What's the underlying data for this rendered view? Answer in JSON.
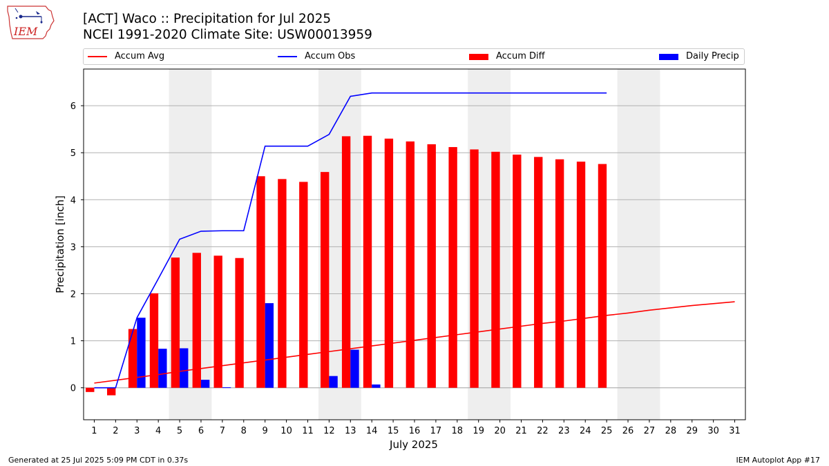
{
  "header": {
    "title_line1": "[ACT] Waco :: Precipitation for Jul 2025",
    "title_line2": "NCEI 1991-2020 Climate Site: USW00013959",
    "logo_text": "IEM"
  },
  "legend": {
    "items": [
      {
        "label": "Accum Avg",
        "color": "#ff0000",
        "kind": "line"
      },
      {
        "label": "Accum Obs",
        "color": "#0000ff",
        "kind": "line"
      },
      {
        "label": "Accum Diff",
        "color": "#ff0000",
        "kind": "bar"
      },
      {
        "label": "Daily Precip",
        "color": "#0000ff",
        "kind": "bar"
      }
    ]
  },
  "footer": {
    "left": "Generated at 25 Jul 2025 5:09 PM CDT in 0.37s",
    "right": "IEM Autoplot App #17"
  },
  "chart_data": {
    "type": "bar",
    "xlabel": "July 2025",
    "ylabel": "Precipitation [inch]",
    "xlim": [
      0.5,
      31.5
    ],
    "ylim": [
      -0.68,
      6.78
    ],
    "x_ticks": [
      1,
      2,
      3,
      4,
      5,
      6,
      7,
      8,
      9,
      10,
      11,
      12,
      13,
      14,
      15,
      16,
      17,
      18,
      19,
      20,
      21,
      22,
      23,
      24,
      25,
      26,
      27,
      28,
      29,
      30,
      31
    ],
    "y_ticks": [
      0,
      1,
      2,
      3,
      4,
      5,
      6
    ],
    "grid": "y",
    "legend_position": "top",
    "weekend_shading": [
      [
        5,
        6
      ],
      [
        12,
        13
      ],
      [
        19,
        20
      ],
      [
        26,
        27
      ]
    ],
    "accum_avg": {
      "x": [
        1,
        2,
        3,
        4,
        5,
        6,
        7,
        8,
        9,
        10,
        11,
        12,
        13,
        14,
        15,
        16,
        17,
        18,
        19,
        20,
        21,
        22,
        23,
        24,
        25,
        26,
        27,
        28,
        29,
        30,
        31
      ],
      "values": [
        0.1,
        0.16,
        0.22,
        0.28,
        0.35,
        0.41,
        0.47,
        0.53,
        0.59,
        0.65,
        0.71,
        0.77,
        0.83,
        0.89,
        0.95,
        1.01,
        1.07,
        1.13,
        1.19,
        1.25,
        1.31,
        1.37,
        1.42,
        1.48,
        1.54,
        1.59,
        1.65,
        1.7,
        1.75,
        1.79,
        1.83
      ]
    },
    "accum_obs": {
      "x": [
        1,
        2,
        3,
        4,
        5,
        6,
        7,
        8,
        9,
        10,
        11,
        12,
        13,
        14,
        15,
        16,
        17,
        18,
        19,
        20,
        21,
        22,
        23,
        24,
        25
      ],
      "values": [
        0.0,
        0.0,
        1.49,
        2.32,
        3.16,
        3.33,
        3.34,
        3.34,
        5.14,
        5.14,
        5.14,
        5.39,
        6.2,
        6.27,
        6.27,
        6.27,
        6.27,
        6.27,
        6.27,
        6.27,
        6.27,
        6.27,
        6.27,
        6.27,
        6.27
      ]
    },
    "accum_diff": {
      "x": [
        1,
        2,
        3,
        4,
        5,
        6,
        7,
        8,
        9,
        10,
        11,
        12,
        13,
        14,
        15,
        16,
        17,
        18,
        19,
        20,
        21,
        22,
        23,
        24,
        25
      ],
      "values": [
        -0.09,
        -0.16,
        1.25,
        2.01,
        2.77,
        2.87,
        2.81,
        2.76,
        4.5,
        4.44,
        4.38,
        4.59,
        5.35,
        5.36,
        5.3,
        5.24,
        5.18,
        5.12,
        5.07,
        5.02,
        4.96,
        4.91,
        4.86,
        4.81,
        4.76
      ]
    },
    "daily_precip": {
      "x": [
        1,
        2,
        3,
        4,
        5,
        6,
        7,
        8,
        9,
        10,
        11,
        12,
        13,
        14,
        15,
        16,
        17,
        18,
        19,
        20,
        21,
        22,
        23,
        24,
        25
      ],
      "values": [
        0,
        0,
        1.49,
        0.83,
        0.84,
        0.17,
        0.01,
        0,
        1.8,
        0,
        0,
        0.25,
        0.81,
        0.07,
        0,
        0,
        0,
        0,
        0,
        0,
        0,
        0,
        0,
        0,
        0
      ]
    }
  }
}
